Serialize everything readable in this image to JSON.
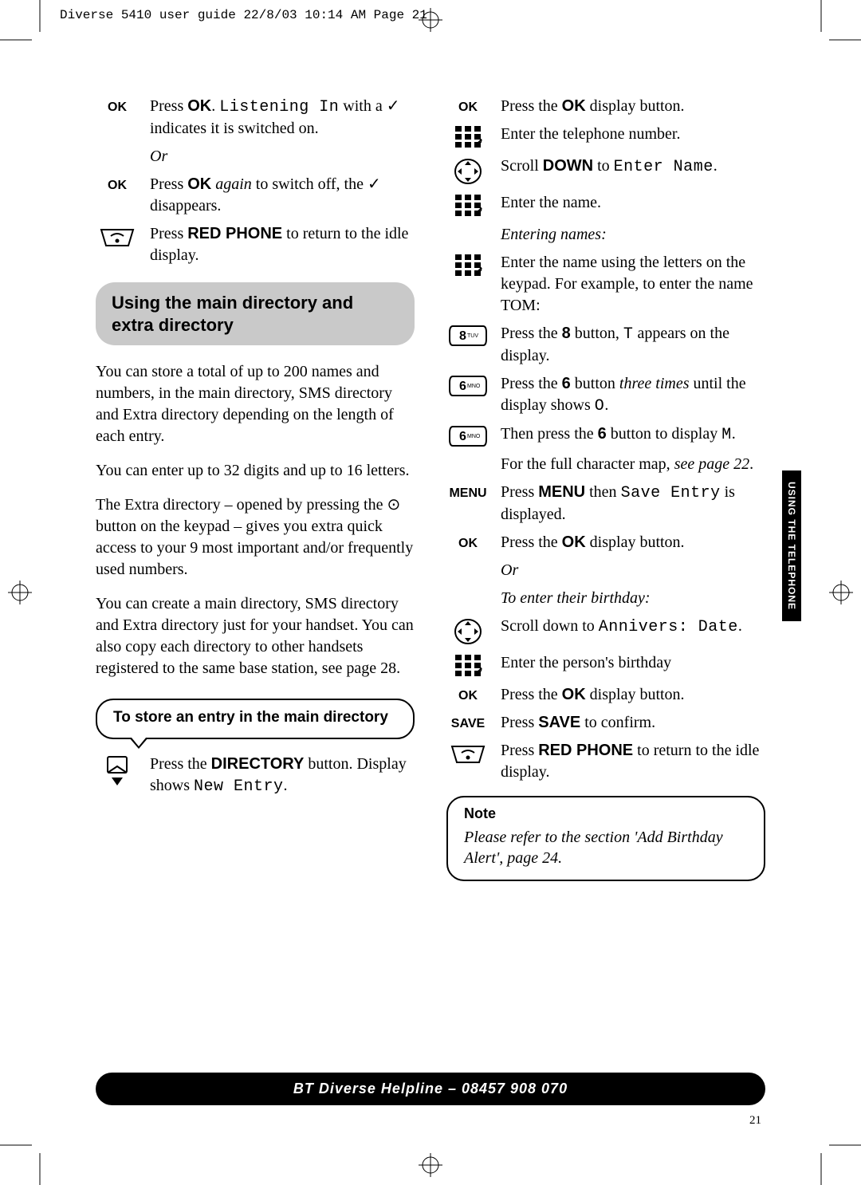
{
  "header": "Diverse 5410 user guide  22/8/03  10:14 AM  Page 21",
  "side_tab": "USING THE TELEPHONE",
  "page_number": "21",
  "footer": "BT Diverse Helpline – 08457 908 070",
  "left": {
    "steps_top": [
      {
        "label": "OK",
        "text_parts": [
          "Press ",
          "OK",
          ". ",
          "Listening In",
          " with a ✓ indicates it is switched on."
        ],
        "bold_idx": [
          1
        ],
        "lcd_idx": [
          3
        ]
      },
      {
        "label": "",
        "text": "Or",
        "italic": true,
        "indent": true
      },
      {
        "label": "OK",
        "text_parts": [
          "Press ",
          "OK",
          " ",
          "again",
          " to switch off, the ✓ disappears."
        ],
        "bold_idx": [
          1
        ],
        "italic_idx": [
          3
        ]
      },
      {
        "label": "phone",
        "text_parts": [
          "Press ",
          "RED PHONE",
          " to return to the idle display."
        ],
        "bold_idx": [
          1
        ]
      }
    ],
    "section_header": "Using the main directory and extra directory",
    "paras": [
      "You can store a total of up to 200 names and numbers, in the main directory, SMS directory and Extra directory depending on the length of each entry.",
      "You can enter up to 32 digits and up to 16 letters.",
      "The Extra directory – opened by pressing the ⊙ button on the keypad – gives you extra quick access to your 9 most important and/or frequently used numbers.",
      "You can create a main directory, SMS directory and Extra directory just for your handset. You can also copy each directory to other handsets registered to the same base station, see page 28."
    ],
    "callout": "To store an entry in the main directory",
    "dir_step_parts": [
      "Press the ",
      "DIRECTORY",
      " button. Display shows ",
      "New Entry",
      "."
    ],
    "dir_step_bold": [
      1
    ],
    "dir_step_lcd": [
      3
    ]
  },
  "right": {
    "steps": [
      {
        "label": "OK",
        "parts": [
          "Press the ",
          "OK",
          " display button."
        ],
        "bold": [
          1
        ]
      },
      {
        "label": "keypad",
        "parts": [
          "Enter the telephone number."
        ]
      },
      {
        "label": "nav",
        "parts": [
          "Scroll ",
          "DOWN",
          " to ",
          "Enter Name",
          "."
        ],
        "bold": [
          1
        ],
        "lcd": [
          3
        ]
      },
      {
        "label": "keypad",
        "parts": [
          "Enter the name."
        ]
      },
      {
        "label": "",
        "parts": [
          "Entering names:"
        ],
        "italic": true,
        "indent": true
      },
      {
        "label": "keypad",
        "parts": [
          "Enter the name using the letters on the keypad. For example, to enter the name TOM:"
        ]
      },
      {
        "label": "key8",
        "parts": [
          "Press the ",
          "8",
          " button, ",
          "T",
          " appears on the display."
        ],
        "bold": [
          1
        ],
        "lcd": [
          3
        ]
      },
      {
        "label": "key6",
        "parts": [
          "Press the ",
          "6",
          " button ",
          "three times",
          " until the display shows ",
          "O",
          "."
        ],
        "bold": [
          1
        ],
        "italic": [
          3
        ],
        "lcd": [
          5
        ]
      },
      {
        "label": "key6",
        "parts": [
          "Then press the ",
          "6",
          " button to display ",
          "M",
          "."
        ],
        "bold": [
          1
        ],
        "lcd": [
          3
        ]
      },
      {
        "label": "",
        "parts": [
          "For the full character map, ",
          "see page 22",
          "."
        ],
        "italic": [
          1
        ],
        "indent": true
      },
      {
        "label": "MENU",
        "parts": [
          "Press ",
          "MENU",
          " then ",
          "Save Entry",
          " is displayed."
        ],
        "bold": [
          1
        ],
        "lcd": [
          3
        ]
      },
      {
        "label": "OK",
        "parts": [
          "Press the ",
          "OK",
          " display button."
        ],
        "bold": [
          1
        ]
      },
      {
        "label": "",
        "parts": [
          "Or"
        ],
        "italic": true,
        "indent": true
      },
      {
        "label": "",
        "parts": [
          "To enter their birthday:"
        ],
        "italic": true,
        "indent": true
      },
      {
        "label": "nav",
        "parts": [
          "Scroll down to ",
          "Annivers: Date",
          "."
        ],
        "lcd": [
          1
        ]
      },
      {
        "label": "keypad",
        "parts": [
          "Enter the person's birthday"
        ]
      },
      {
        "label": "OK",
        "parts": [
          "Press the ",
          "OK",
          " display button."
        ],
        "bold": [
          1
        ]
      },
      {
        "label": "SAVE",
        "parts": [
          "Press ",
          "SAVE",
          " to confirm."
        ],
        "bold": [
          1
        ]
      },
      {
        "label": "phone",
        "parts": [
          "Press ",
          "RED PHONE",
          " to return to the idle display."
        ],
        "bold": [
          1
        ]
      }
    ],
    "note_title": "Note",
    "note_body": "Please refer to the section 'Add Birthday Alert', page 24."
  }
}
